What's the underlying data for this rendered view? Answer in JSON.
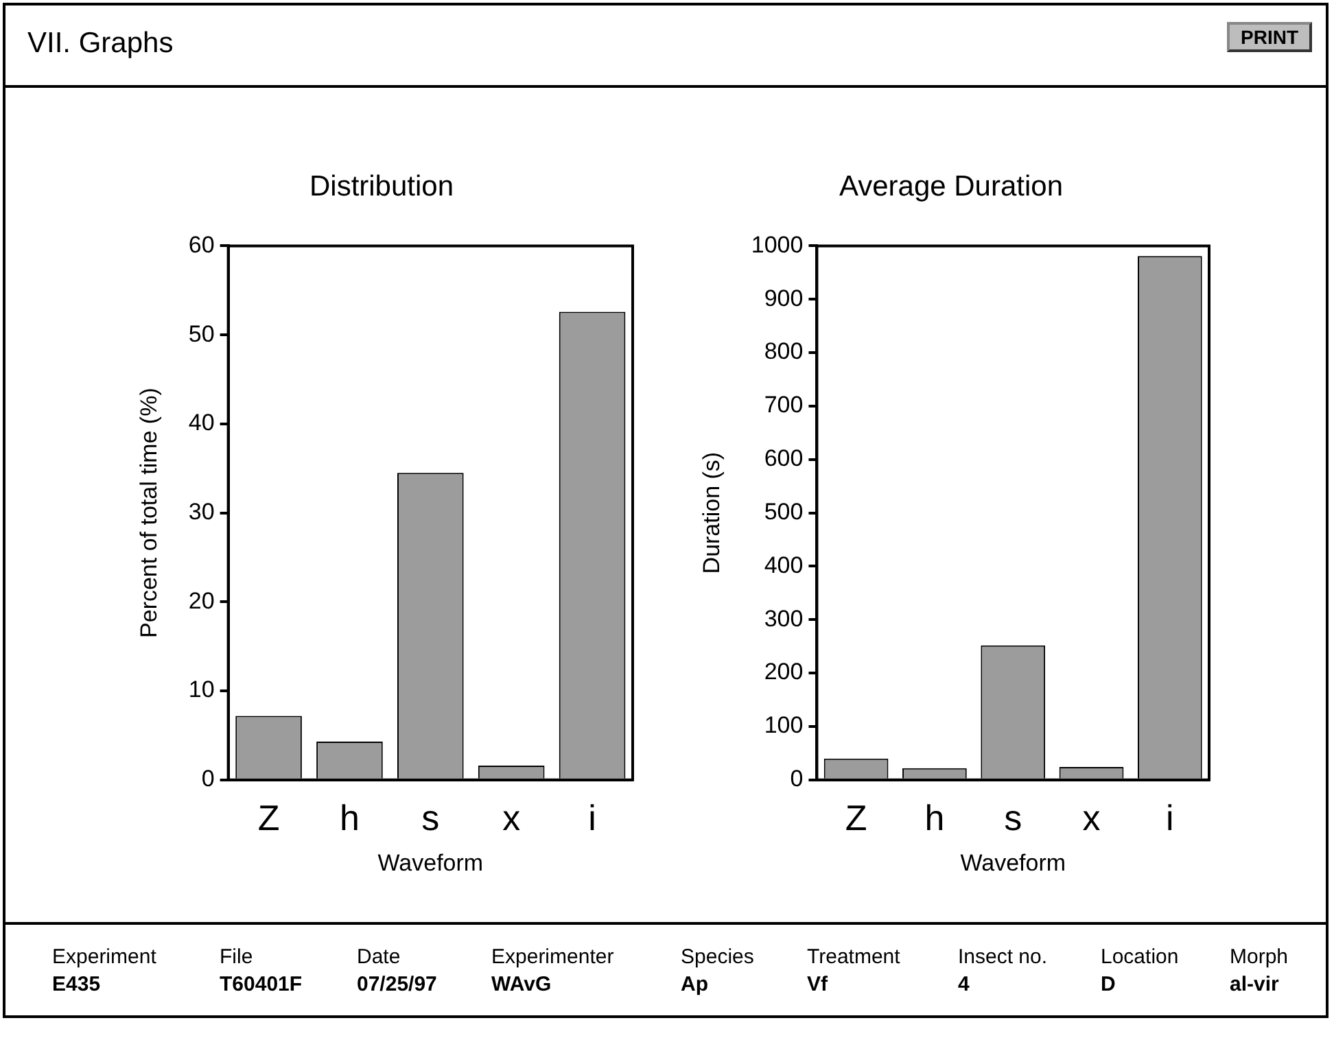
{
  "chart_data": [
    {
      "type": "bar",
      "title": "Distribution",
      "xlabel": "Waveform",
      "ylabel": "Percent of total time (%)",
      "categories": [
        "Z",
        "h",
        "s",
        "x",
        "i"
      ],
      "values": [
        7.2,
        4.3,
        34.5,
        1.6,
        52.6
      ],
      "color": "#9c9c9c",
      "ylim": [
        0,
        60
      ],
      "yticks": [
        0,
        10,
        20,
        30,
        40,
        50,
        60
      ]
    },
    {
      "type": "bar",
      "title": "Average Duration",
      "xlabel": "Waveform",
      "ylabel": "Duration (s)",
      "categories": [
        "Z",
        "h",
        "s",
        "x",
        "i"
      ],
      "values": [
        40,
        22,
        252,
        24,
        981
      ],
      "color": "#9c9c9c",
      "ylim": [
        0,
        1000
      ],
      "yticks": [
        0,
        100,
        200,
        300,
        400,
        500,
        600,
        700,
        800,
        900,
        1000
      ]
    },
    {
      "type": "other",
      "title": "VII. Graphs",
      "annotations": [
        "PRINT",
        "Experiment",
        "File",
        "Date",
        "Experimenter",
        "Species",
        "Treatment",
        "Insect no.",
        "Location",
        "Morph",
        "E435",
        "T60401F",
        "07/25/97",
        "WAvG",
        "Ap",
        "Vf",
        "4",
        "D",
        "al-vir"
      ]
    }
  ]
}
